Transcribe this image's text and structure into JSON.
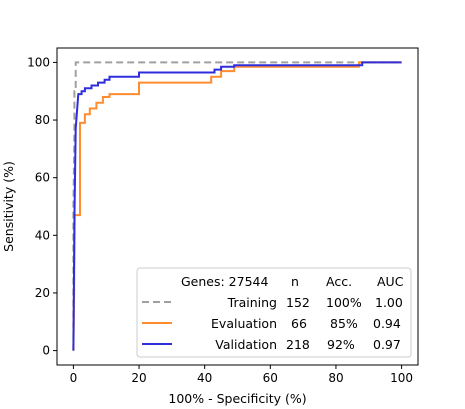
{
  "chart_data": {
    "type": "line",
    "xlabel": "100% - Specificity (%)",
    "ylabel": "Sensitivity (%)",
    "xlim": [
      -5,
      105
    ],
    "ylim": [
      -5,
      105
    ],
    "xticks": [
      0,
      20,
      40,
      60,
      80,
      100
    ],
    "yticks": [
      0,
      20,
      40,
      60,
      80,
      100
    ],
    "grid": false,
    "legend_position": "bottom-right",
    "legend_header": {
      "genes": "Genes: 27544",
      "n": "n",
      "acc": "Acc.",
      "auc": "AUC"
    },
    "series": [
      {
        "name": "Training",
        "n": "152",
        "acc": "100%",
        "auc": "1.00",
        "color": "#a0a0a0",
        "dashed": true,
        "points": [
          [
            0,
            0
          ],
          [
            0,
            50
          ],
          [
            0.3,
            75
          ],
          [
            0.3,
            90
          ],
          [
            0.7,
            90
          ],
          [
            0.7,
            100
          ],
          [
            100,
            100
          ]
        ]
      },
      {
        "name": "Evaluation",
        "n": "66",
        "acc": "85%",
        "auc": "0.94",
        "color": "#ff8c2e",
        "dashed": false,
        "points": [
          [
            0,
            0
          ],
          [
            0.2,
            20
          ],
          [
            0.4,
            47
          ],
          [
            2,
            47
          ],
          [
            2,
            79
          ],
          [
            3.5,
            79
          ],
          [
            3.5,
            82
          ],
          [
            5,
            82
          ],
          [
            5,
            84
          ],
          [
            7,
            84
          ],
          [
            7,
            86
          ],
          [
            9,
            86
          ],
          [
            9,
            88
          ],
          [
            11,
            88
          ],
          [
            11,
            89
          ],
          [
            20,
            89
          ],
          [
            20,
            93
          ],
          [
            42,
            93
          ],
          [
            42,
            95
          ],
          [
            45,
            95
          ],
          [
            45,
            97
          ],
          [
            49,
            97
          ],
          [
            49,
            98.5
          ],
          [
            87,
            98.5
          ],
          [
            87,
            100
          ],
          [
            100,
            100
          ]
        ]
      },
      {
        "name": "Validation",
        "n": "218",
        "acc": "92%",
        "auc": "0.97",
        "color": "#2e2edc",
        "dashed": false,
        "points": [
          [
            0,
            0
          ],
          [
            0.3,
            45
          ],
          [
            0.7,
            77
          ],
          [
            1.5,
            89
          ],
          [
            2.5,
            89
          ],
          [
            2.5,
            90
          ],
          [
            3.5,
            90
          ],
          [
            3.5,
            91
          ],
          [
            5.5,
            91
          ],
          [
            5.5,
            92
          ],
          [
            7.5,
            92
          ],
          [
            7.5,
            93
          ],
          [
            9.5,
            93
          ],
          [
            9.5,
            94
          ],
          [
            11,
            94
          ],
          [
            11,
            95
          ],
          [
            20,
            95
          ],
          [
            20,
            96.5
          ],
          [
            43,
            96.5
          ],
          [
            43,
            97.5
          ],
          [
            45,
            97.5
          ],
          [
            45,
            98.5
          ],
          [
            49,
            98.5
          ],
          [
            49,
            99
          ],
          [
            88,
            99
          ],
          [
            88,
            100
          ],
          [
            100,
            100
          ]
        ]
      }
    ]
  }
}
